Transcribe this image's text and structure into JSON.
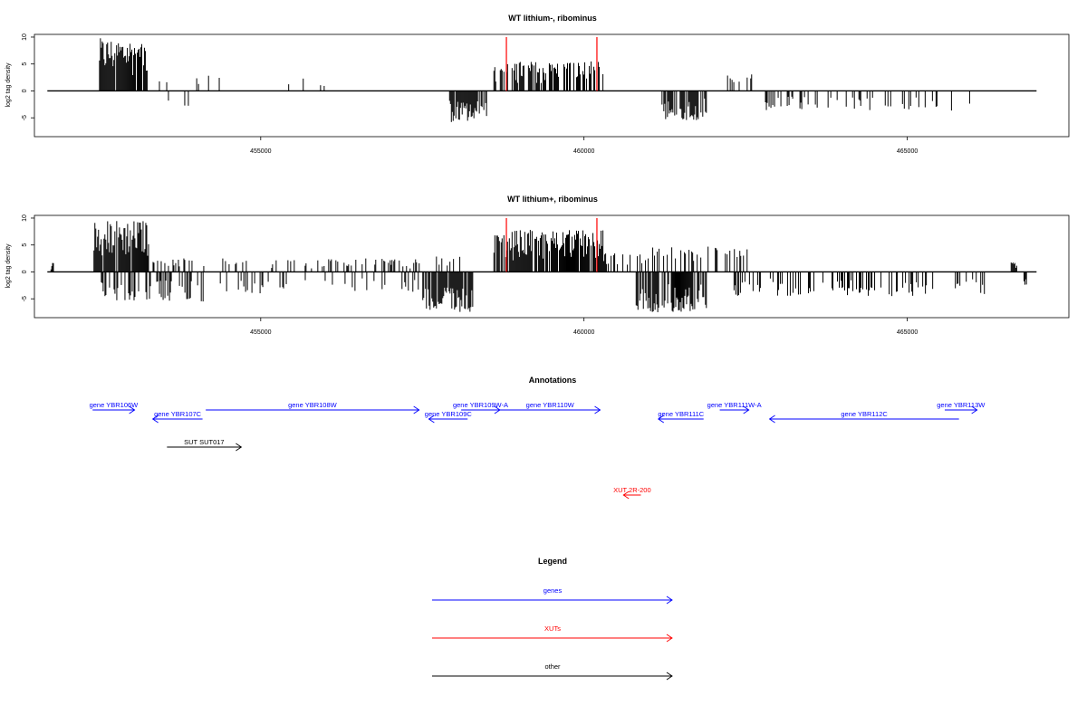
{
  "chart_data": [
    {
      "type": "bar",
      "title": "WT lithium-, ribominus",
      "xlabel": "",
      "ylabel": "log2 tag density",
      "xlim": [
        451500,
        467500
      ],
      "ylim": [
        -8.5,
        10.5
      ],
      "yticks": [
        -5,
        0,
        5,
        10
      ],
      "xticks": [
        455000,
        460000,
        465000
      ],
      "ytick_labels": [
        "-5",
        "0",
        "5",
        "10"
      ],
      "xtick_labels": [
        "455000",
        "460000",
        "465000"
      ],
      "baseline_range": [
        451700,
        467000
      ],
      "regions": [
        {
          "start": 452500,
          "end": 453250,
          "strand": "+",
          "density": 0.95,
          "max": 9.8
        },
        {
          "start": 453300,
          "end": 454200,
          "strand": "+",
          "density": 0.1,
          "max": 3
        },
        {
          "start": 453300,
          "end": 454000,
          "strand": "-",
          "density": 0.12,
          "max": 4.2
        },
        {
          "start": 454200,
          "end": 454600,
          "strand": "+",
          "density": 0.08,
          "max": 3
        },
        {
          "start": 455200,
          "end": 456200,
          "strand": "+",
          "density": 0.05,
          "max": 2.3
        },
        {
          "start": 457900,
          "end": 458500,
          "strand": "-",
          "density": 0.85,
          "max": 5.8
        },
        {
          "start": 458600,
          "end": 460300,
          "strand": "+",
          "density": 0.55,
          "max": 5.5
        },
        {
          "start": 460800,
          "end": 461000,
          "strand": "+",
          "density": 0.1,
          "max": 1.8
        },
        {
          "start": 461200,
          "end": 461900,
          "strand": "-",
          "density": 0.75,
          "max": 5.5
        },
        {
          "start": 462200,
          "end": 462600,
          "strand": "+",
          "density": 0.2,
          "max": 3.2
        },
        {
          "start": 462800,
          "end": 466000,
          "strand": "-",
          "density": 0.2,
          "max": 3.8
        }
      ],
      "markers": [
        458800,
        460200
      ],
      "marker_color": "#ff0000",
      "bar_color": "#000000"
    },
    {
      "type": "bar",
      "title": "WT lithium+, ribominus",
      "xlabel": "",
      "ylabel": "log2 tag density",
      "xlim": [
        451500,
        467500
      ],
      "ylim": [
        -8.5,
        10.5
      ],
      "yticks": [
        -5,
        0,
        5,
        10
      ],
      "xticks": [
        455000,
        460000,
        465000
      ],
      "ytick_labels": [
        "-5",
        "0",
        "5",
        "10"
      ],
      "xtick_labels": [
        "455000",
        "460000",
        "465000"
      ],
      "baseline_range": [
        451700,
        467000
      ],
      "regions": [
        {
          "start": 451750,
          "end": 451800,
          "strand": "+",
          "density": 1,
          "max": 1.8
        },
        {
          "start": 452400,
          "end": 453300,
          "strand": "+",
          "density": 0.9,
          "max": 9.6
        },
        {
          "start": 452500,
          "end": 454200,
          "strand": "-",
          "density": 0.3,
          "max": 5.5
        },
        {
          "start": 453300,
          "end": 457500,
          "strand": "+",
          "density": 0.2,
          "max": 2.5
        },
        {
          "start": 454200,
          "end": 457500,
          "strand": "-",
          "density": 0.15,
          "max": 4
        },
        {
          "start": 457500,
          "end": 458300,
          "strand": "-",
          "density": 0.85,
          "max": 7.5
        },
        {
          "start": 457600,
          "end": 458100,
          "strand": "+",
          "density": 0.2,
          "max": 3.5
        },
        {
          "start": 458600,
          "end": 460300,
          "strand": "+",
          "density": 0.9,
          "max": 7.8
        },
        {
          "start": 460300,
          "end": 461000,
          "strand": "+",
          "density": 0.3,
          "max": 3.5
        },
        {
          "start": 460800,
          "end": 461900,
          "strand": "-",
          "density": 0.8,
          "max": 7.5
        },
        {
          "start": 461000,
          "end": 462600,
          "strand": "+",
          "density": 0.3,
          "max": 4.8
        },
        {
          "start": 462300,
          "end": 466200,
          "strand": "-",
          "density": 0.3,
          "max": 4.5
        },
        {
          "start": 466600,
          "end": 466700,
          "strand": "+",
          "density": 1,
          "max": 1.8
        },
        {
          "start": 466800,
          "end": 466850,
          "strand": "-",
          "density": 1,
          "max": 2.5
        }
      ],
      "markers": [
        458800,
        460200
      ],
      "marker_color": "#ff0000",
      "bar_color": "#000000"
    }
  ],
  "annotations": {
    "title": "Annotations",
    "items": [
      {
        "label": "gene YBR106W",
        "start": 452400,
        "end": 453050,
        "row": 0,
        "dir": "right",
        "color": "#0000ff"
      },
      {
        "label": "gene YBR107C",
        "start": 453330,
        "end": 454100,
        "row": 1,
        "dir": "left",
        "color": "#0000ff"
      },
      {
        "label": "gene YBR108W",
        "start": 454150,
        "end": 457450,
        "row": 0,
        "dir": "right",
        "color": "#0000ff"
      },
      {
        "label": "gene YBR109C",
        "start": 457600,
        "end": 458200,
        "row": 1,
        "dir": "left",
        "color": "#0000ff"
      },
      {
        "label": "gene YBR109W-A",
        "start": 458100,
        "end": 458700,
        "row": 0,
        "dir": "right",
        "color": "#0000ff"
      },
      {
        "label": "gene YBR110W",
        "start": 458700,
        "end": 460250,
        "row": 0,
        "dir": "right",
        "color": "#0000ff"
      },
      {
        "label": "gene YBR111C",
        "start": 461150,
        "end": 461850,
        "row": 1,
        "dir": "left",
        "color": "#0000ff"
      },
      {
        "label": "gene YBR111W-A",
        "start": 462100,
        "end": 462550,
        "row": 0,
        "dir": "right",
        "color": "#0000ff"
      },
      {
        "label": "gene YBR112C",
        "start": 462870,
        "end": 465800,
        "row": 1,
        "dir": "left",
        "color": "#0000ff"
      },
      {
        "label": "gene YBR113W",
        "start": 465580,
        "end": 466080,
        "row": 0,
        "dir": "right",
        "color": "#0000ff"
      },
      {
        "label": "SUT SUT017",
        "start": 453550,
        "end": 454700,
        "row": 2,
        "dir": "right",
        "color": "#000000"
      },
      {
        "label": "XUT 2R-200",
        "start": 460610,
        "end": 460880,
        "row": 3,
        "dir": "left",
        "color": "#ff0000"
      }
    ]
  },
  "legend": {
    "title": "Legend",
    "items": [
      {
        "label": "genes",
        "color": "#0000ff"
      },
      {
        "label": "XUTs",
        "color": "#ff0000"
      },
      {
        "label": "other",
        "color": "#000000"
      }
    ]
  }
}
